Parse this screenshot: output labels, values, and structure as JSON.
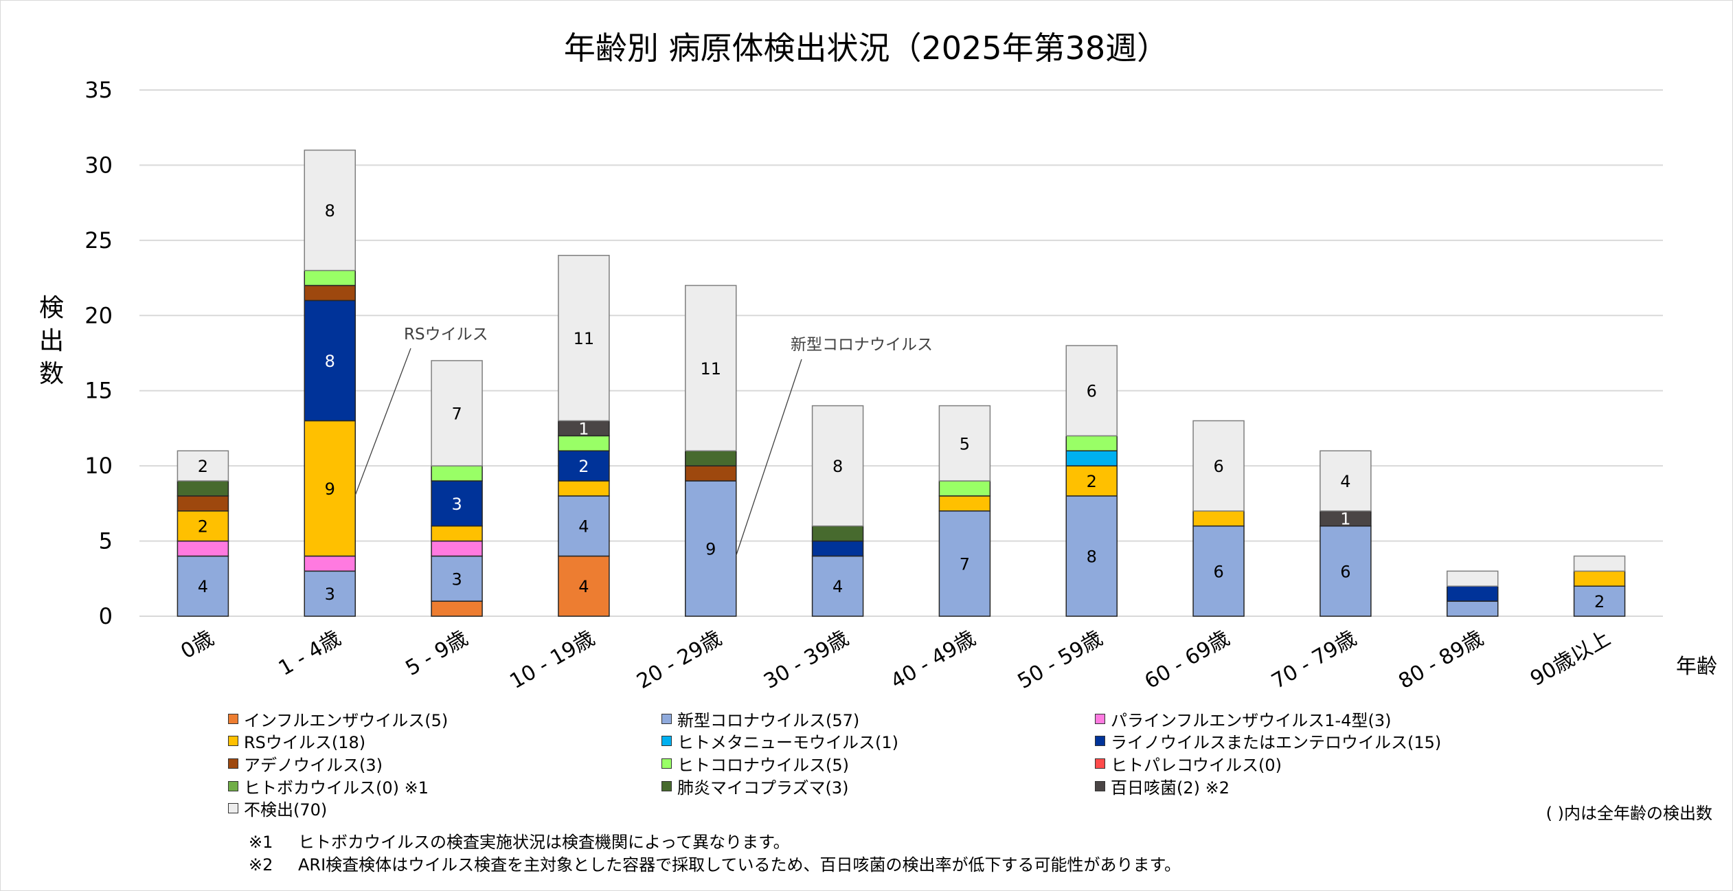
{
  "chart_data": {
    "type": "bar",
    "stacked": true,
    "title": "年齢別 病原体検出状況（2025年第38週）",
    "xlabel": "年齢",
    "ylabel": "検出数",
    "ylim": [
      0,
      35
    ],
    "yticks": [
      0,
      5,
      10,
      15,
      20,
      25,
      30,
      35
    ],
    "grid": true,
    "legend_position": "bottom",
    "categories": [
      "0歳",
      "1 - 4歳",
      "5 - 9歳",
      "10 - 19歳",
      "20 - 29歳",
      "30 - 39歳",
      "40 - 49歳",
      "50 - 59歳",
      "60 - 69歳",
      "70 - 79歳",
      "80 - 89歳",
      "90歳以上"
    ],
    "series": [
      {
        "name": "インフルエンザウイルス",
        "legend_label": "インフルエンザウイルス(5)",
        "color": "#ED7D31",
        "label_color": "#000000",
        "values": [
          0,
          0,
          1,
          4,
          0,
          0,
          0,
          0,
          0,
          0,
          0,
          0
        ],
        "show_labels": [
          false,
          false,
          false,
          true,
          false,
          false,
          false,
          false,
          false,
          false,
          false,
          false
        ]
      },
      {
        "name": "新型コロナウイルス",
        "legend_label": "新型コロナウイルス(57)",
        "color": "#8FAADC",
        "label_color": "#000000",
        "values": [
          4,
          3,
          3,
          4,
          9,
          4,
          7,
          8,
          6,
          6,
          1,
          2
        ],
        "show_labels": [
          true,
          true,
          true,
          true,
          true,
          true,
          true,
          true,
          true,
          true,
          false,
          true
        ]
      },
      {
        "name": "パラインフルエンザウイルス1-4型",
        "legend_label": "パラインフルエンザウイルス1-4型(3)",
        "color": "#FF7AE0",
        "label_color": "#000000",
        "values": [
          1,
          1,
          1,
          0,
          0,
          0,
          0,
          0,
          0,
          0,
          0,
          0
        ],
        "show_labels": [
          false,
          false,
          false,
          false,
          false,
          false,
          false,
          false,
          false,
          false,
          false,
          false
        ]
      },
      {
        "name": "RSウイルス",
        "legend_label": "RSウイルス(18)",
        "color": "#FFC000",
        "label_color": "#000000",
        "values": [
          2,
          9,
          1,
          1,
          0,
          0,
          1,
          2,
          1,
          0,
          0,
          1
        ],
        "show_labels": [
          true,
          true,
          false,
          false,
          false,
          false,
          false,
          true,
          false,
          false,
          false,
          false
        ]
      },
      {
        "name": "ヒトメタニューモウイルス",
        "legend_label": "ヒトメタニューモウイルス(1)",
        "color": "#00B0F0",
        "label_color": "#000000",
        "values": [
          0,
          0,
          0,
          0,
          0,
          0,
          0,
          1,
          0,
          0,
          0,
          0
        ],
        "show_labels": [
          false,
          false,
          false,
          false,
          false,
          false,
          false,
          false,
          false,
          false,
          false,
          false
        ]
      },
      {
        "name": "ライノウイルスまたはエンテロウイルス",
        "legend_label": "ライノウイルスまたはエンテロウイルス(15)",
        "color": "#003399",
        "label_color": "#FFFFFF",
        "values": [
          0,
          8,
          3,
          2,
          0,
          1,
          0,
          0,
          0,
          0,
          1,
          0
        ],
        "show_labels": [
          false,
          true,
          true,
          true,
          false,
          false,
          false,
          false,
          false,
          false,
          false,
          false
        ]
      },
      {
        "name": "アデノウイルス",
        "legend_label": "アデノウイルス(3)",
        "color": "#9E480E",
        "label_color": "#FFFFFF",
        "values": [
          1,
          1,
          0,
          0,
          1,
          0,
          0,
          0,
          0,
          0,
          0,
          0
        ],
        "show_labels": [
          false,
          false,
          false,
          false,
          false,
          false,
          false,
          false,
          false,
          false,
          false,
          false
        ]
      },
      {
        "name": "ヒトコロナウイルス",
        "legend_label": "ヒトコロナウイルス(5)",
        "color": "#99FF66",
        "label_color": "#000000",
        "values": [
          0,
          1,
          1,
          1,
          0,
          0,
          1,
          1,
          0,
          0,
          0,
          0
        ],
        "show_labels": [
          false,
          false,
          false,
          false,
          false,
          false,
          false,
          false,
          false,
          false,
          false,
          false
        ]
      },
      {
        "name": "ヒトパレコウイルス",
        "legend_label": "ヒトパレコウイルス(0)",
        "color": "#FF4B4B",
        "label_color": "#000000",
        "values": [
          0,
          0,
          0,
          0,
          0,
          0,
          0,
          0,
          0,
          0,
          0,
          0
        ],
        "show_labels": [
          false,
          false,
          false,
          false,
          false,
          false,
          false,
          false,
          false,
          false,
          false,
          false
        ]
      },
      {
        "name": "ヒトボカウイルス",
        "legend_label": "ヒトボカウイルス(0) ※1",
        "color": "#70AD47",
        "label_color": "#000000",
        "values": [
          0,
          0,
          0,
          0,
          0,
          0,
          0,
          0,
          0,
          0,
          0,
          0
        ],
        "show_labels": [
          false,
          false,
          false,
          false,
          false,
          false,
          false,
          false,
          false,
          false,
          false,
          false
        ]
      },
      {
        "name": "肺炎マイコプラズマ",
        "legend_label": "肺炎マイコプラズマ(3)",
        "color": "#476A2E",
        "label_color": "#FFFFFF",
        "values": [
          1,
          0,
          0,
          0,
          1,
          1,
          0,
          0,
          0,
          0,
          0,
          0
        ],
        "show_labels": [
          false,
          false,
          false,
          false,
          false,
          false,
          false,
          false,
          false,
          false,
          false,
          false
        ]
      },
      {
        "name": "百日咳菌",
        "legend_label": "百日咳菌(2) ※2",
        "color": "#4A4545",
        "label_color": "#FFFFFF",
        "values": [
          0,
          0,
          0,
          1,
          0,
          0,
          0,
          0,
          0,
          1,
          0,
          0
        ],
        "show_labels": [
          false,
          false,
          false,
          true,
          false,
          false,
          false,
          false,
          false,
          true,
          false,
          false
        ]
      },
      {
        "name": "不検出",
        "legend_label": "不検出(70)",
        "color": "#EDEDED",
        "label_color": "#000000",
        "values": [
          2,
          8,
          7,
          11,
          11,
          8,
          5,
          6,
          6,
          4,
          1,
          1
        ],
        "show_labels": [
          true,
          true,
          true,
          true,
          true,
          true,
          true,
          true,
          true,
          true,
          false,
          false
        ]
      }
    ],
    "legend_order": [
      [
        "インフルエンザウイルス",
        "新型コロナウイルス",
        "パラインフルエンザウイルス1-4型"
      ],
      [
        "RSウイルス",
        "ヒトメタニューモウイルス",
        "ライノウイルスまたはエンテロウイルス"
      ],
      [
        "アデノウイルス",
        "ヒトコロナウイルス",
        "ヒトパレコウイルス"
      ],
      [
        "ヒトボカウイルス",
        "肺炎マイコプラズマ",
        "百日咳菌"
      ],
      [
        "不検出"
      ]
    ],
    "annotations": [
      {
        "text": "RSウイルス",
        "target_category": "1 - 4歳",
        "target_series": "RSウイルス"
      },
      {
        "text": "新型コロナウイルス",
        "target_category": "20 - 29歳",
        "target_series": "新型コロナウイルス"
      }
    ]
  },
  "legend_note": "( )内は全年齢の検出数",
  "footnotes": [
    {
      "mark": "※1",
      "text": "ヒトボカウイルスの検査実施状況は検査機関によって異なります。"
    },
    {
      "mark": "※2",
      "text": "ARI検査検体はウイルス検査を主対象とした容器で採取しているため、百日咳菌の検出率が低下する可能性があります。"
    }
  ]
}
